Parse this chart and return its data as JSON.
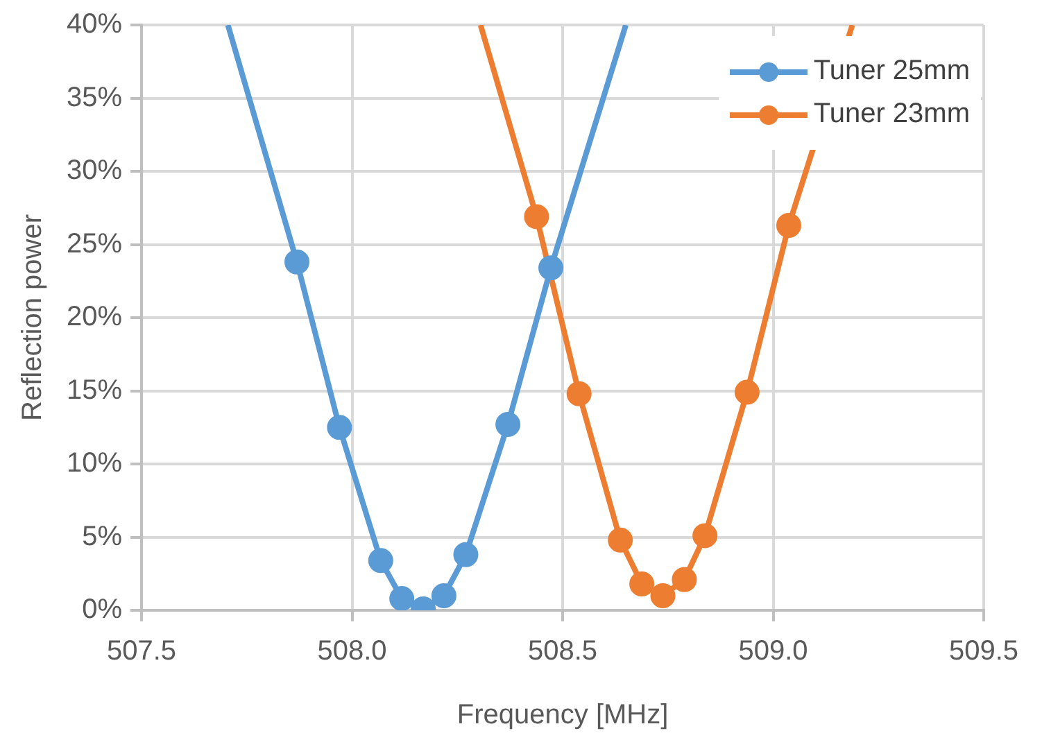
{
  "chart_data": {
    "type": "line",
    "xlabel": "Frequency [MHz]",
    "ylabel": "Reflection power",
    "xlim": [
      507.5,
      509.5
    ],
    "xticks": [
      {
        "value": 507.5,
        "label": "507.5"
      },
      {
        "value": 508,
        "label": "508.0"
      },
      {
        "value": 508.5,
        "label": "508.5"
      },
      {
        "value": 509,
        "label": "509.0"
      },
      {
        "value": 509.5,
        "label": "509.5"
      }
    ],
    "ylim": [
      0,
      40
    ],
    "yticks": [
      {
        "value": 0,
        "label": "0%"
      },
      {
        "value": 5,
        "label": "5%"
      },
      {
        "value": 10,
        "label": "10%"
      },
      {
        "value": 15,
        "label": "15%"
      },
      {
        "value": 20,
        "label": "20%"
      },
      {
        "value": 25,
        "label": "25%"
      },
      {
        "value": 30,
        "label": "30%"
      },
      {
        "value": 35,
        "label": "35%"
      },
      {
        "value": 40,
        "label": "40%"
      }
    ],
    "grid": true,
    "legend": "top right",
    "marker": "circle",
    "line_style": "solid",
    "series": [
      {
        "name": "Tuner 25mm",
        "color": "#5b9bd5",
        "x": [
          507.705,
          507.869,
          507.97,
          508.068,
          508.118,
          508.169,
          508.218,
          508.27,
          508.37,
          508.472,
          508.65
        ],
        "values": [
          40,
          23.8,
          12.5,
          3.4,
          0.8,
          0.1,
          1.0,
          3.8,
          12.7,
          23.4,
          40
        ]
      },
      {
        "name": "Tuner 23mm",
        "color": "#ed7d31",
        "x": [
          508.305,
          508.438,
          508.539,
          508.637,
          508.688,
          508.738,
          508.789,
          508.838,
          508.938,
          509.037,
          509.188
        ],
        "values": [
          40,
          26.9,
          14.8,
          4.8,
          1.8,
          1.0,
          2.1,
          5.1,
          14.9,
          26.3,
          40
        ]
      }
    ]
  }
}
